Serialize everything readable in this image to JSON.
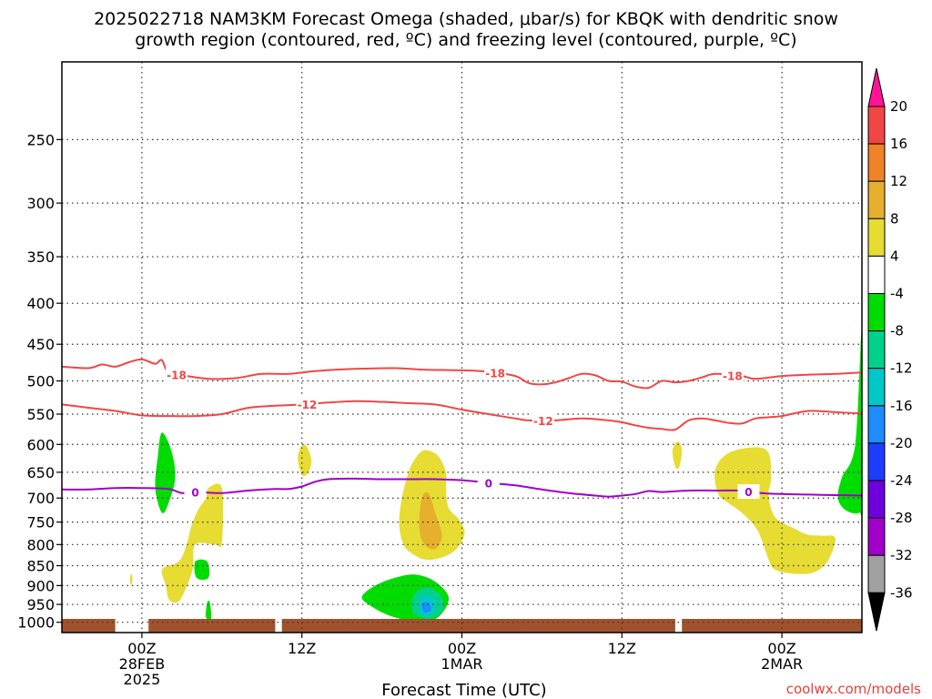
{
  "chart_data": {
    "type": "contour",
    "title_line1": "2025022718 NAM3KM Forecast Omega (shaded, μbar/s) for KBQK with dendritic snow",
    "title_line2": "growth region (contoured, red, ºC) and freezing level (contoured, purple, ºC)",
    "xlabel": "Forecast Time (UTC)",
    "ylabel": "",
    "credit": "coolwx.com/models",
    "x_range_hours": [
      -6,
      54
    ],
    "y_range_hPa": [
      1030,
      200
    ],
    "y_scale": "log-pressure",
    "grid": "dotted",
    "y_ticks": [
      "250",
      "300",
      "350",
      "400",
      "450",
      "500",
      "550",
      "600",
      "650",
      "700",
      "750",
      "800",
      "850",
      "900",
      "950",
      "1000"
    ],
    "x_ticks": [
      {
        "label": [
          "00Z",
          "28FEB",
          "2025"
        ],
        "hour": 0
      },
      {
        "label": [
          "12Z"
        ],
        "hour": 12
      },
      {
        "label": [
          "00Z",
          "1MAR"
        ],
        "hour": 24
      },
      {
        "label": [
          "12Z"
        ],
        "hour": 36
      },
      {
        "label": [
          "00Z",
          "2MAR"
        ],
        "hour": 48
      }
    ],
    "colorbar": {
      "levels": [
        "20",
        "16",
        "12",
        "8",
        "4",
        "-4",
        "-8",
        "-12",
        "-16",
        "-20",
        "-24",
        "-28",
        "-32",
        "-36"
      ],
      "colors": [
        "#ff1493",
        "#f04646",
        "#f08228",
        "#e6af2d",
        "#e6dc32",
        "#ffffff",
        "#00dc00",
        "#00d28c",
        "#00c8c8",
        "#1e8cff",
        "#1e3cff",
        "#6e00dc",
        "#a000c8",
        "#a0a0a0",
        "#000000"
      ]
    },
    "contours": [
      {
        "name": "-18",
        "color": "#f04646",
        "label_hours": [
          2.6,
          26.5,
          44.3
        ],
        "points": [
          [
            -6,
            480
          ],
          [
            -4,
            482
          ],
          [
            -3,
            477
          ],
          [
            -2,
            480
          ],
          [
            -1,
            474
          ],
          [
            0,
            470
          ],
          [
            1,
            476
          ],
          [
            1.5,
            471
          ],
          [
            2,
            490
          ],
          [
            3,
            492
          ],
          [
            5,
            497
          ],
          [
            7,
            496
          ],
          [
            9,
            490
          ],
          [
            11,
            490
          ],
          [
            13,
            486
          ],
          [
            16,
            483
          ],
          [
            19,
            482
          ],
          [
            21,
            484
          ],
          [
            24,
            485
          ],
          [
            26,
            487
          ],
          [
            28,
            493
          ],
          [
            29,
            503
          ],
          [
            30,
            505
          ],
          [
            31,
            502
          ],
          [
            32,
            496
          ],
          [
            33,
            490
          ],
          [
            34,
            492
          ],
          [
            35,
            500
          ],
          [
            36,
            501
          ],
          [
            37,
            508
          ],
          [
            38,
            510
          ],
          [
            39,
            500
          ],
          [
            40,
            502
          ],
          [
            41,
            500
          ],
          [
            42,
            495
          ],
          [
            43,
            490
          ],
          [
            45,
            493
          ],
          [
            46,
            497
          ],
          [
            48,
            493
          ],
          [
            50,
            491
          ],
          [
            52,
            490
          ],
          [
            54,
            488
          ]
        ]
      },
      {
        "name": "-12",
        "color": "#f04646",
        "label_hours": [
          12.4,
          30.1
        ],
        "points": [
          [
            -6,
            535
          ],
          [
            -4,
            540
          ],
          [
            -2,
            545
          ],
          [
            0,
            552
          ],
          [
            2,
            553
          ],
          [
            4,
            553
          ],
          [
            6,
            550
          ],
          [
            8,
            540
          ],
          [
            10,
            537
          ],
          [
            12,
            535
          ],
          [
            14,
            532
          ],
          [
            16,
            530
          ],
          [
            18,
            531
          ],
          [
            20,
            533
          ],
          [
            22,
            535
          ],
          [
            24,
            543
          ],
          [
            26,
            550
          ],
          [
            28,
            557
          ],
          [
            29,
            560
          ],
          [
            31,
            560
          ],
          [
            33,
            557
          ],
          [
            35,
            560
          ],
          [
            36,
            563
          ],
          [
            37,
            568
          ],
          [
            38,
            572
          ],
          [
            39,
            574
          ],
          [
            40,
            575
          ],
          [
            41,
            560
          ],
          [
            42,
            557
          ],
          [
            43,
            560
          ],
          [
            44,
            564
          ],
          [
            45,
            565
          ],
          [
            46,
            557
          ],
          [
            47,
            555
          ],
          [
            48,
            553
          ],
          [
            50,
            545
          ],
          [
            52,
            547
          ],
          [
            54,
            549
          ]
        ]
      },
      {
        "name": "0",
        "color": "#a000c8",
        "label_hours": [
          4,
          26,
          45.5
        ],
        "points": [
          [
            -6,
            683
          ],
          [
            -4,
            683
          ],
          [
            -2,
            680
          ],
          [
            0,
            680
          ],
          [
            2,
            682
          ],
          [
            3,
            690
          ],
          [
            4,
            688
          ],
          [
            6,
            690
          ],
          [
            8,
            685
          ],
          [
            10,
            682
          ],
          [
            11,
            682
          ],
          [
            12,
            677
          ],
          [
            13,
            668
          ],
          [
            14,
            663
          ],
          [
            16,
            662
          ],
          [
            18,
            663
          ],
          [
            20,
            663
          ],
          [
            22,
            663
          ],
          [
            24,
            665
          ],
          [
            26,
            670
          ],
          [
            28,
            675
          ],
          [
            30,
            683
          ],
          [
            32,
            690
          ],
          [
            34,
            695
          ],
          [
            35,
            697
          ],
          [
            36,
            695
          ],
          [
            37,
            692
          ],
          [
            38,
            686
          ],
          [
            39,
            688
          ],
          [
            41,
            685
          ],
          [
            43,
            685
          ],
          [
            45,
            685
          ],
          [
            46,
            689
          ],
          [
            48,
            692
          ],
          [
            50,
            693
          ],
          [
            52,
            694
          ],
          [
            54,
            695
          ]
        ]
      }
    ],
    "omega_regions": [
      {
        "level": "-4 to -8",
        "color": "#00dc00",
        "points": [
          [
            1.5,
            580
          ],
          [
            2.2,
            610
          ],
          [
            2.5,
            660
          ],
          [
            2,
            710
          ],
          [
            1.5,
            730
          ],
          [
            1,
            680
          ],
          [
            1.2,
            620
          ]
        ]
      },
      {
        "level": "-4 to -8",
        "color": "#00dc00",
        "points": [
          [
            4,
            840
          ],
          [
            4.9,
            840
          ],
          [
            5,
            880
          ],
          [
            4.1,
            880
          ]
        ]
      },
      {
        "level": "-4 to -8",
        "color": "#00dc00",
        "points": [
          [
            4.9,
            945
          ],
          [
            5.1,
            945
          ],
          [
            5.2,
            990
          ],
          [
            4.8,
            985
          ]
        ]
      },
      {
        "level": "-4 to -8",
        "color": "#00dc00",
        "points": [
          [
            16.5,
            930
          ],
          [
            17.5,
            900
          ],
          [
            19,
            880
          ],
          [
            20.5,
            872
          ],
          [
            22,
            890
          ],
          [
            23,
            930
          ],
          [
            22.5,
            975
          ],
          [
            21.5,
            998
          ],
          [
            20,
            995
          ],
          [
            18.5,
            980
          ],
          [
            17.2,
            955
          ]
        ]
      },
      {
        "level": "-4 to -8",
        "color": "#00dc00",
        "points": [
          [
            53.5,
            600
          ],
          [
            54,
            430
          ],
          [
            54,
            700
          ],
          [
            53.8,
            730
          ],
          [
            52.8,
            725
          ],
          [
            52.2,
            700
          ],
          [
            52.5,
            660
          ]
        ]
      },
      {
        "level": "-8 to -12",
        "color": "#00d28c",
        "points": [
          [
            20.5,
            920
          ],
          [
            21.5,
            905
          ],
          [
            22.5,
            930
          ],
          [
            22.5,
            970
          ],
          [
            21.5,
            990
          ],
          [
            20.3,
            970
          ]
        ]
      },
      {
        "level": "-12 to -16",
        "color": "#00c8c8",
        "points": [
          [
            20.8,
            940
          ],
          [
            21.4,
            925
          ],
          [
            22,
            940
          ],
          [
            21.8,
            972
          ],
          [
            21,
            980
          ]
        ]
      },
      {
        "level": "-16 to -20",
        "color": "#1e8cff",
        "points": [
          [
            21,
            950
          ],
          [
            21.5,
            945
          ],
          [
            21.7,
            965
          ],
          [
            21.2,
            972
          ]
        ]
      },
      {
        "level": "4 to 8",
        "color": "#e6dc32",
        "points": [
          [
            -0.9,
            885
          ],
          [
            -0.8,
            870
          ],
          [
            -0.7,
            880
          ],
          [
            -0.8,
            900
          ]
        ]
      },
      {
        "level": "4 to 8",
        "color": "#e6dc32",
        "points": [
          [
            1.5,
            860
          ],
          [
            2.5,
            845
          ],
          [
            3,
            830
          ],
          [
            3.4,
            795
          ],
          [
            3.7,
            760
          ],
          [
            4.2,
            725
          ],
          [
            4.8,
            700
          ],
          [
            5,
            680
          ],
          [
            6,
            680
          ],
          [
            6,
            795
          ],
          [
            5.5,
            800
          ],
          [
            4,
            800
          ],
          [
            3.8,
            860
          ],
          [
            3,
            930
          ],
          [
            2.5,
            945
          ],
          [
            2,
            935
          ],
          [
            1.8,
            900
          ]
        ]
      },
      {
        "level": "4 to 8",
        "color": "#e6dc32",
        "points": [
          [
            11.7,
            620
          ],
          [
            12.2,
            600
          ],
          [
            12.7,
            625
          ],
          [
            12.5,
            650
          ],
          [
            12,
            655
          ]
        ]
      },
      {
        "level": "4 to 8",
        "color": "#e6dc32",
        "points": [
          [
            19.5,
            700
          ],
          [
            20,
            650
          ],
          [
            20.5,
            625
          ],
          [
            21.2,
            610
          ],
          [
            22.2,
            620
          ],
          [
            22.8,
            650
          ],
          [
            22.8,
            680
          ],
          [
            23,
            720
          ],
          [
            23.8,
            745
          ],
          [
            24.2,
            775
          ],
          [
            23.6,
            810
          ],
          [
            22.5,
            830
          ],
          [
            21.2,
            835
          ],
          [
            20,
            815
          ],
          [
            19.5,
            790
          ],
          [
            19.3,
            750
          ]
        ]
      },
      {
        "level": "8 to 12",
        "color": "#e6af2d",
        "points": [
          [
            21,
            700
          ],
          [
            21.5,
            690
          ],
          [
            22,
            730
          ],
          [
            22.5,
            780
          ],
          [
            22,
            810
          ],
          [
            21.2,
            800
          ],
          [
            20.8,
            760
          ]
        ]
      },
      {
        "level": "4 to 8",
        "color": "#e6dc32",
        "points": [
          [
            39.8,
            610
          ],
          [
            40.2,
            595
          ],
          [
            40.5,
            610
          ],
          [
            40.3,
            640
          ],
          [
            40,
            640
          ]
        ]
      },
      {
        "level": "4 to 8",
        "color": "#e6dc32",
        "points": [
          [
            43,
            645
          ],
          [
            44,
            615
          ],
          [
            46,
            605
          ],
          [
            47,
            615
          ],
          [
            47.2,
            660
          ],
          [
            47,
            695
          ],
          [
            47.5,
            740
          ],
          [
            49,
            765
          ],
          [
            50,
            778
          ],
          [
            51,
            780
          ],
          [
            52,
            785
          ],
          [
            51.5,
            835
          ],
          [
            50.5,
            865
          ],
          [
            49,
            870
          ],
          [
            47.5,
            860
          ],
          [
            47,
            835
          ],
          [
            46.5,
            790
          ],
          [
            46,
            760
          ],
          [
            45,
            730
          ],
          [
            44,
            710
          ],
          [
            43.2,
            690
          ]
        ]
      }
    ],
    "surface_bars": [
      [
        -6,
        -2
      ],
      [
        0.5,
        10
      ],
      [
        10.5,
        40
      ],
      [
        40.5,
        54
      ]
    ]
  }
}
